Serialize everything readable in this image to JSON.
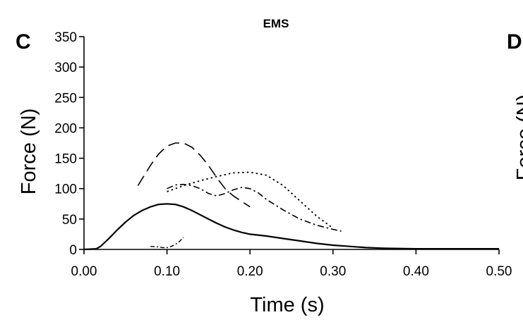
{
  "chart_data": {
    "type": "line",
    "title": "EMS",
    "panel_label": "C",
    "next_panel": {
      "label": "D",
      "ylabel_fragment": "Force (N)"
    },
    "xlabel": "Time (s)",
    "ylabel": "Force (N)",
    "xlim": [
      0.0,
      0.5
    ],
    "ylim": [
      0,
      350
    ],
    "xticks": [
      "0.00",
      "0.10",
      "0.20",
      "0.30",
      "0.40",
      "0.50"
    ],
    "xtick_values": [
      0.0,
      0.1,
      0.2,
      0.3,
      0.4,
      0.5
    ],
    "yticks": [
      "0",
      "50",
      "100",
      "150",
      "200",
      "250",
      "300",
      "350"
    ],
    "ytick_values": [
      0,
      50,
      100,
      150,
      200,
      250,
      300,
      350
    ],
    "grid": false,
    "series": [
      {
        "style": "solid",
        "stroke": "#000000",
        "x": [
          0.0,
          0.015,
          0.02,
          0.03,
          0.04,
          0.05,
          0.06,
          0.07,
          0.08,
          0.09,
          0.1,
          0.11,
          0.12,
          0.13,
          0.14,
          0.15,
          0.16,
          0.17,
          0.18,
          0.19,
          0.2,
          0.22,
          0.24,
          0.26,
          0.28,
          0.3,
          0.32,
          0.34,
          0.36,
          0.4,
          0.45,
          0.5
        ],
        "y": [
          0,
          1,
          5,
          18,
          32,
          45,
          56,
          64,
          70,
          74,
          75,
          74,
          70,
          64,
          57,
          50,
          43,
          37,
          32,
          28,
          25,
          22,
          18,
          14,
          10,
          7,
          5,
          3,
          2,
          1,
          1,
          1
        ]
      },
      {
        "style": "long-dash",
        "stroke": "#000000",
        "x": [
          0.065,
          0.08,
          0.09,
          0.1,
          0.11,
          0.12,
          0.13,
          0.14,
          0.15,
          0.16,
          0.17,
          0.18,
          0.2
        ],
        "y": [
          105,
          138,
          157,
          170,
          175,
          175,
          168,
          155,
          138,
          118,
          100,
          88,
          70
        ]
      },
      {
        "style": "dotted",
        "stroke": "#000000",
        "x": [
          0.1,
          0.12,
          0.14,
          0.16,
          0.18,
          0.2,
          0.22,
          0.24,
          0.26,
          0.28,
          0.3
        ],
        "y": [
          95,
          105,
          113,
          120,
          126,
          127,
          122,
          105,
          80,
          55,
          35
        ]
      },
      {
        "style": "dash-dot",
        "stroke": "#000000",
        "x": [
          0.1,
          0.11,
          0.12,
          0.13,
          0.14,
          0.15,
          0.16,
          0.17,
          0.18,
          0.19,
          0.2,
          0.21,
          0.22,
          0.24,
          0.26,
          0.28,
          0.3,
          0.31
        ],
        "y": [
          100,
          106,
          107,
          105,
          100,
          92,
          88,
          92,
          98,
          102,
          100,
          93,
          82,
          65,
          50,
          40,
          33,
          30
        ]
      },
      {
        "style": "dash-dot-short",
        "stroke": "#000000",
        "x": [
          0.08,
          0.09,
          0.095,
          0.1,
          0.105,
          0.11,
          0.115,
          0.12
        ],
        "y": [
          5,
          4,
          3,
          3,
          5,
          8,
          13,
          20
        ]
      }
    ]
  }
}
